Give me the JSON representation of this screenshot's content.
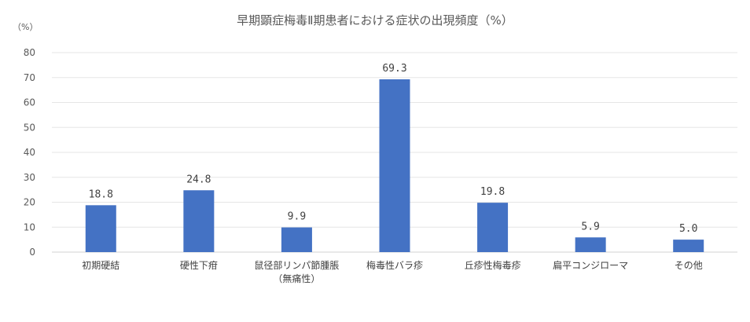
{
  "chart_data": {
    "type": "bar",
    "title": "早期顕症梅毒Ⅱ期患者における症状の出現頻度（%）",
    "ylabel": "（%）",
    "xlabel": "",
    "ylim": [
      0,
      80
    ],
    "yticks": [
      0,
      10,
      20,
      30,
      40,
      50,
      60,
      70,
      80
    ],
    "grid": true,
    "bar_color": "#4472C4",
    "categories": [
      [
        "初期硬結"
      ],
      [
        "硬性下疳"
      ],
      [
        "鼠径部リンパ節腫脹",
        "（無痛性）"
      ],
      [
        "梅毒性バラ疹"
      ],
      [
        "丘疹性梅毒疹"
      ],
      [
        "扁平コンジローマ"
      ],
      [
        "その他"
      ]
    ],
    "values": [
      18.8,
      24.8,
      9.9,
      69.3,
      19.8,
      5.9,
      5.0
    ],
    "data_labels": [
      "18.8",
      "24.8",
      "9.9",
      "69.3",
      "19.8",
      "5.9",
      "5.0"
    ]
  }
}
